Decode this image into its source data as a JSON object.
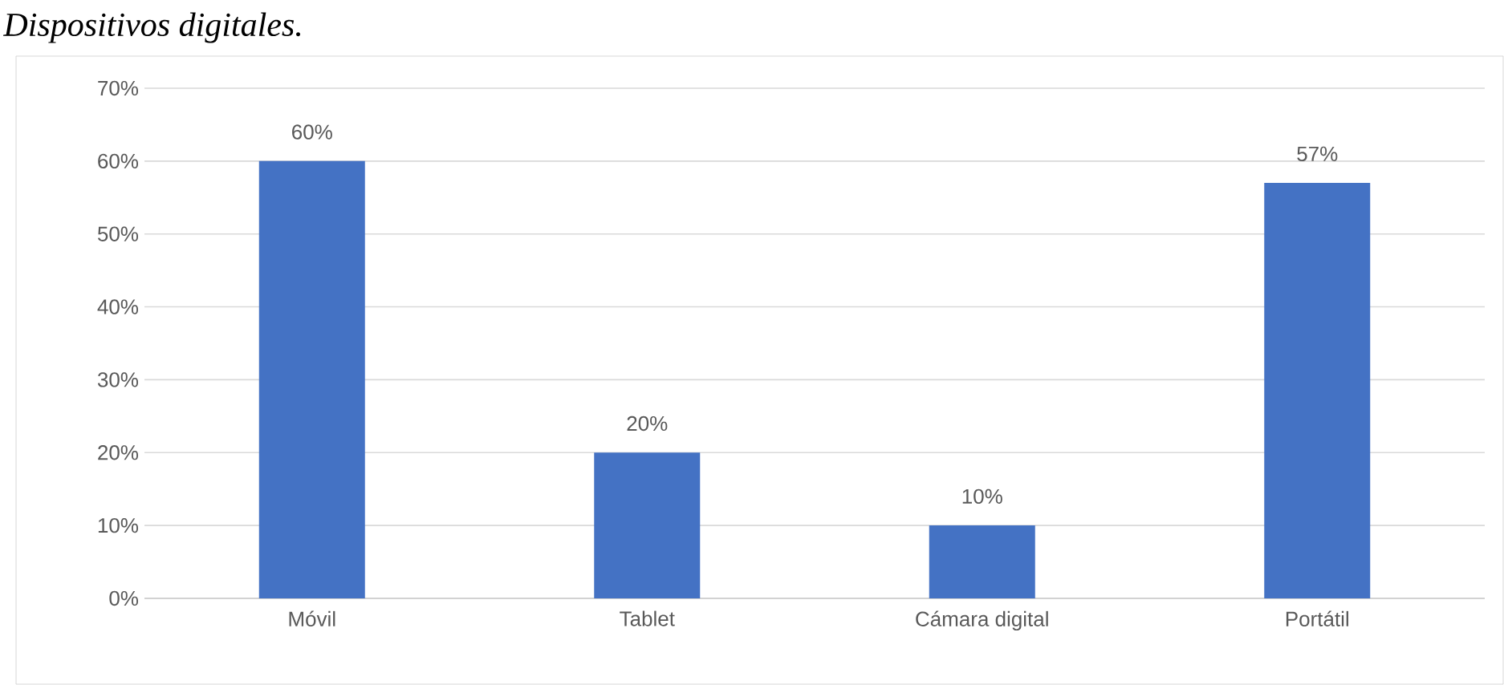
{
  "chart_data": {
    "type": "bar",
    "title": "Dispositivos digitales.",
    "categories": [
      "Móvil",
      "Tablet",
      "Cámara digital",
      "Portátil"
    ],
    "values": [
      60,
      20,
      10,
      57
    ],
    "value_labels": [
      "60%",
      "20%",
      "10%",
      "57%"
    ],
    "color": "#4472c4",
    "ylim": [
      0,
      70
    ],
    "yticks": [
      {
        "value": 0,
        "label": "0%"
      },
      {
        "value": 10,
        "label": "10%"
      },
      {
        "value": 20,
        "label": "20%"
      },
      {
        "value": 30,
        "label": "30%"
      },
      {
        "value": 40,
        "label": "40%"
      },
      {
        "value": 50,
        "label": "50%"
      },
      {
        "value": 60,
        "label": "60%"
      },
      {
        "value": 70,
        "label": "70%"
      }
    ],
    "grid": "y",
    "legend": false
  }
}
